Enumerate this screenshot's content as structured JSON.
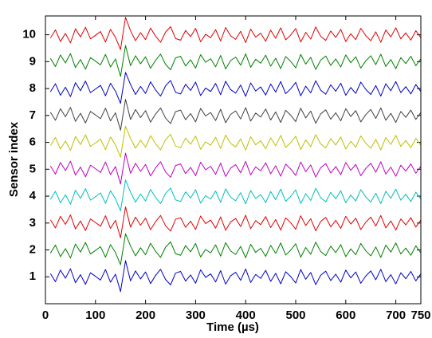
{
  "chart_data": {
    "type": "line",
    "x_label": "Time (µs)",
    "y_label": "Sensor index",
    "xlim": [
      0,
      750
    ],
    "xticks": [
      0,
      100,
      200,
      300,
      400,
      500,
      600,
      700,
      750
    ],
    "ylim": [
      0,
      10.7
    ],
    "yticks": [
      1,
      2,
      3,
      4,
      5,
      6,
      7,
      8,
      9,
      10
    ],
    "grid": false,
    "x": [
      10,
      20,
      30,
      40,
      50,
      60,
      70,
      80,
      90,
      100,
      110,
      120,
      130,
      140,
      150,
      160,
      170,
      180,
      190,
      200,
      210,
      220,
      230,
      240,
      250,
      260,
      270,
      280,
      290,
      300,
      310,
      320,
      330,
      340,
      350,
      360,
      370,
      380,
      390,
      400,
      410,
      420,
      430,
      440,
      450,
      460,
      470,
      480,
      490,
      500,
      510,
      520,
      530,
      540,
      550,
      560,
      570,
      580,
      590,
      600,
      610,
      620,
      630,
      640,
      650,
      660,
      670,
      680,
      690,
      700,
      710,
      720,
      730,
      740,
      750
    ],
    "series": [
      {
        "color": "#0000c8",
        "values": [
          1.12,
          0.82,
          1.25,
          0.95,
          1.3,
          0.78,
          1.08,
          0.72,
          1.15,
          1.02,
          0.88,
          1.27,
          0.8,
          1.1,
          0.45,
          1.6,
          0.85,
          1.22,
          0.92,
          1.18,
          0.75,
          1.05,
          1.28,
          0.9,
          0.7,
          1.14,
          1.2,
          0.84,
          1.07,
          0.76,
          1.26,
          0.98,
          1.11,
          0.81,
          1.23,
          0.73,
          1.04,
          1.17,
          0.87,
          1.29,
          0.79,
          1.09,
          0.94,
          1.24,
          0.83,
          1.13,
          0.74,
          1.19,
          1.01,
          0.77,
          1.27,
          0.91,
          1.16,
          0.71,
          1.06,
          1.21,
          0.86,
          1.1,
          0.8,
          1.25,
          0.96,
          1.18,
          0.76,
          1.03,
          1.22,
          0.89,
          1.28,
          0.82,
          1.08,
          0.74,
          1.15,
          0.93,
          1.2,
          0.85,
          1.11
        ]
      },
      {
        "color": "#008000",
        "values": [
          1.88,
          2.18,
          1.75,
          2.05,
          1.7,
          2.22,
          1.92,
          2.28,
          1.85,
          1.98,
          2.12,
          1.73,
          2.2,
          1.9,
          1.45,
          2.6,
          2.15,
          1.78,
          2.08,
          1.82,
          2.25,
          1.95,
          1.72,
          2.1,
          2.3,
          1.86,
          1.8,
          2.16,
          1.93,
          2.24,
          1.74,
          2.02,
          1.89,
          2.19,
          1.77,
          2.27,
          1.96,
          1.83,
          2.13,
          1.71,
          2.21,
          1.91,
          2.06,
          1.76,
          2.17,
          1.87,
          2.26,
          1.81,
          1.99,
          2.23,
          1.73,
          2.09,
          1.84,
          2.29,
          1.94,
          1.79,
          2.14,
          1.9,
          2.2,
          1.75,
          2.04,
          1.82,
          2.24,
          1.97,
          1.78,
          2.11,
          1.72,
          2.18,
          1.92,
          2.26,
          1.85,
          2.07,
          1.8,
          2.15,
          1.89
        ]
      },
      {
        "color": "#e00000",
        "values": [
          3.12,
          2.82,
          3.25,
          2.95,
          3.3,
          2.78,
          3.08,
          2.72,
          3.15,
          3.02,
          2.88,
          3.27,
          2.8,
          3.1,
          2.45,
          3.6,
          2.85,
          3.22,
          2.92,
          3.18,
          2.75,
          3.05,
          3.28,
          2.9,
          2.7,
          3.14,
          3.2,
          2.84,
          3.07,
          2.76,
          3.26,
          2.98,
          3.11,
          2.81,
          3.23,
          2.73,
          3.04,
          3.17,
          2.87,
          3.29,
          2.79,
          3.09,
          2.94,
          3.24,
          2.83,
          3.13,
          2.74,
          3.19,
          3.01,
          2.77,
          3.27,
          2.91,
          3.16,
          2.71,
          3.06,
          3.21,
          2.86,
          3.1,
          2.8,
          3.25,
          2.96,
          3.18,
          2.76,
          3.03,
          3.22,
          2.89,
          3.28,
          2.82,
          3.08,
          2.74,
          3.15,
          2.93,
          3.2,
          2.85,
          3.11
        ]
      },
      {
        "color": "#00bfbf",
        "values": [
          3.88,
          4.18,
          3.75,
          4.05,
          3.7,
          4.22,
          3.92,
          4.28,
          3.85,
          3.98,
          4.12,
          3.73,
          4.2,
          3.9,
          3.45,
          4.6,
          4.15,
          3.78,
          4.08,
          3.82,
          4.25,
          3.95,
          3.72,
          4.1,
          4.3,
          3.86,
          3.8,
          4.16,
          3.93,
          4.24,
          3.74,
          4.02,
          3.89,
          4.19,
          3.77,
          4.27,
          3.96,
          3.83,
          4.13,
          3.71,
          4.21,
          3.91,
          4.06,
          3.76,
          4.17,
          3.87,
          4.26,
          3.81,
          3.99,
          4.23,
          3.73,
          4.09,
          3.84,
          4.29,
          3.94,
          3.79,
          4.14,
          3.9,
          4.2,
          3.75,
          4.04,
          3.82,
          4.24,
          3.97,
          3.78,
          4.11,
          3.72,
          4.18,
          3.92,
          4.26,
          3.85,
          4.07,
          3.8,
          4.15,
          3.89
        ]
      },
      {
        "color": "#bf00bf",
        "values": [
          5.12,
          4.82,
          5.25,
          4.95,
          5.3,
          4.78,
          5.08,
          4.72,
          5.15,
          5.02,
          4.88,
          5.27,
          4.8,
          5.1,
          4.45,
          5.6,
          4.85,
          5.22,
          4.92,
          5.18,
          4.75,
          5.05,
          5.28,
          4.9,
          4.7,
          5.14,
          5.2,
          4.84,
          5.07,
          4.76,
          5.26,
          4.98,
          5.11,
          4.81,
          5.23,
          4.73,
          5.04,
          5.17,
          4.87,
          5.29,
          4.79,
          5.09,
          4.94,
          5.24,
          4.83,
          5.13,
          4.74,
          5.19,
          5.01,
          4.77,
          5.27,
          4.91,
          5.16,
          4.71,
          5.06,
          5.21,
          4.86,
          5.1,
          4.8,
          5.25,
          4.96,
          5.18,
          4.76,
          5.03,
          5.22,
          4.89,
          5.28,
          4.82,
          5.08,
          4.74,
          5.15,
          4.93,
          5.2,
          4.85,
          5.11
        ]
      },
      {
        "color": "#bfbf00",
        "values": [
          5.88,
          6.18,
          5.75,
          6.05,
          5.7,
          6.22,
          5.92,
          6.28,
          5.85,
          5.98,
          6.12,
          5.73,
          6.2,
          5.9,
          5.45,
          6.6,
          6.15,
          5.78,
          6.08,
          5.82,
          6.25,
          5.95,
          5.72,
          6.1,
          6.3,
          5.86,
          5.8,
          6.16,
          5.93,
          6.24,
          5.74,
          6.02,
          5.89,
          6.19,
          5.77,
          6.27,
          5.96,
          5.83,
          6.13,
          5.71,
          6.21,
          5.91,
          6.06,
          5.76,
          6.17,
          5.87,
          6.26,
          5.81,
          5.99,
          6.23,
          5.73,
          6.09,
          5.84,
          6.29,
          5.94,
          5.79,
          6.14,
          5.9,
          6.2,
          5.75,
          6.04,
          5.82,
          6.24,
          5.97,
          5.78,
          6.11,
          5.72,
          6.18,
          5.92,
          6.26,
          5.85,
          6.07,
          5.8,
          6.15,
          5.89
        ]
      },
      {
        "color": "#404040",
        "values": [
          7.12,
          6.82,
          7.25,
          6.95,
          7.3,
          6.78,
          7.08,
          6.72,
          7.15,
          7.02,
          6.88,
          7.27,
          6.8,
          7.1,
          6.45,
          7.6,
          6.85,
          7.22,
          6.92,
          7.18,
          6.75,
          7.05,
          7.28,
          6.9,
          6.7,
          7.14,
          7.2,
          6.84,
          7.07,
          6.76,
          7.26,
          6.98,
          7.11,
          6.81,
          7.23,
          6.73,
          7.04,
          7.17,
          6.87,
          7.29,
          6.79,
          7.09,
          6.94,
          7.24,
          6.83,
          7.13,
          6.74,
          7.19,
          7.01,
          6.77,
          7.27,
          6.91,
          7.16,
          6.71,
          7.06,
          7.21,
          6.86,
          7.1,
          6.8,
          7.25,
          6.96,
          7.18,
          6.76,
          7.03,
          7.22,
          6.89,
          7.28,
          6.82,
          7.08,
          6.74,
          7.15,
          6.93,
          7.2,
          6.85,
          7.11
        ]
      },
      {
        "color": "#0000c8",
        "values": [
          7.88,
          8.18,
          7.75,
          8.05,
          7.7,
          8.22,
          7.92,
          8.28,
          7.85,
          7.98,
          8.12,
          7.73,
          8.2,
          7.9,
          7.45,
          8.6,
          8.15,
          7.78,
          8.08,
          7.82,
          8.25,
          7.95,
          7.72,
          8.1,
          8.3,
          7.86,
          7.8,
          8.16,
          7.93,
          8.24,
          7.74,
          8.02,
          7.89,
          8.19,
          7.77,
          8.27,
          7.96,
          7.83,
          8.13,
          7.71,
          8.21,
          7.91,
          8.06,
          7.76,
          8.17,
          7.87,
          8.26,
          7.81,
          7.99,
          8.23,
          7.73,
          8.09,
          7.84,
          8.29,
          7.94,
          7.79,
          8.14,
          7.9,
          8.2,
          7.75,
          8.04,
          7.82,
          8.24,
          7.97,
          7.78,
          8.11,
          7.72,
          8.18,
          7.92,
          8.26,
          7.85,
          8.07,
          7.8,
          8.15,
          7.89
        ]
      },
      {
        "color": "#008000",
        "values": [
          9.12,
          8.82,
          9.25,
          8.95,
          9.3,
          8.78,
          9.08,
          8.72,
          9.15,
          9.02,
          8.88,
          9.27,
          8.8,
          9.1,
          8.45,
          9.6,
          8.85,
          9.22,
          8.92,
          9.18,
          8.75,
          9.05,
          9.28,
          8.9,
          8.7,
          9.14,
          9.2,
          8.84,
          9.07,
          8.76,
          9.26,
          8.98,
          9.11,
          8.81,
          9.23,
          8.73,
          9.04,
          9.17,
          8.87,
          9.29,
          8.79,
          9.09,
          8.94,
          9.24,
          8.83,
          9.13,
          8.74,
          9.19,
          9.01,
          8.77,
          9.27,
          8.91,
          9.16,
          8.71,
          9.06,
          9.21,
          8.86,
          9.1,
          8.8,
          9.25,
          8.96,
          9.18,
          8.76,
          9.03,
          9.22,
          8.89,
          9.28,
          8.82,
          9.08,
          8.74,
          9.15,
          8.93,
          9.2,
          8.85,
          9.11
        ]
      },
      {
        "color": "#e00000",
        "values": [
          9.88,
          10.18,
          9.75,
          10.05,
          9.7,
          10.22,
          9.92,
          10.28,
          9.85,
          9.98,
          10.12,
          9.73,
          10.2,
          9.9,
          9.45,
          10.65,
          10.15,
          9.78,
          10.08,
          9.82,
          10.25,
          9.95,
          9.72,
          10.1,
          10.3,
          9.86,
          9.8,
          10.16,
          9.93,
          10.24,
          9.74,
          10.02,
          9.89,
          10.19,
          9.77,
          10.27,
          9.96,
          9.83,
          10.13,
          9.71,
          10.21,
          9.91,
          10.06,
          9.76,
          10.17,
          9.87,
          10.26,
          9.81,
          9.99,
          10.23,
          9.73,
          10.09,
          9.84,
          10.29,
          9.94,
          9.79,
          10.14,
          9.9,
          10.2,
          9.75,
          10.04,
          9.82,
          10.24,
          9.97,
          9.78,
          10.11,
          9.72,
          10.18,
          9.92,
          10.26,
          9.85,
          10.07,
          9.8,
          10.15,
          9.89
        ]
      }
    ]
  }
}
